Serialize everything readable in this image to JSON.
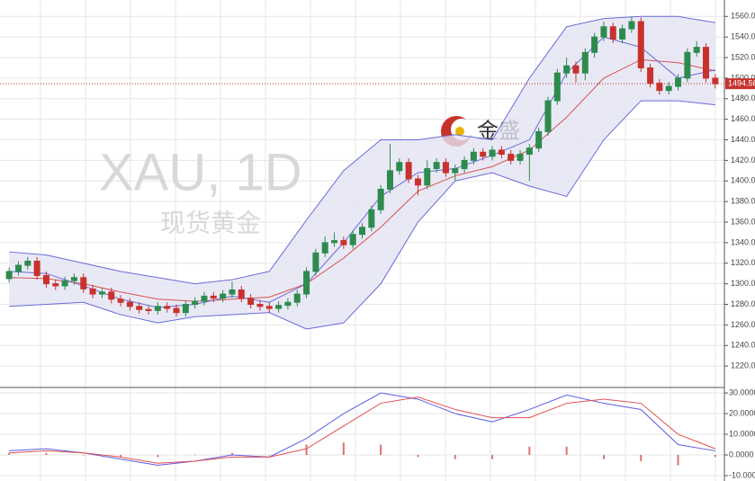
{
  "chart_data": {
    "type": "candlestick",
    "title": "XAU, 1D",
    "subtitle": "现货黄金",
    "brand": "金盛",
    "up_color": "#2e8b4e",
    "down_color": "#c8322d",
    "open": [
      1305,
      1312,
      1318,
      1322,
      1308,
      1300,
      1298,
      1303,
      1306,
      1295,
      1290,
      1292,
      1285,
      1282,
      1278,
      1275,
      1274,
      1278,
      1276,
      1272,
      1280,
      1283,
      1288,
      1286,
      1290,
      1294,
      1286,
      1280,
      1278,
      1276,
      1279,
      1282,
      1290,
      1312,
      1330,
      1340,
      1342,
      1338,
      1348,
      1355,
      1372,
      1392,
      1410,
      1418,
      1402,
      1396,
      1412,
      1418,
      1408,
      1412,
      1420,
      1428,
      1424,
      1430,
      1426,
      1420,
      1426,
      1432,
      1448,
      1478,
      1505,
      1512,
      1505,
      1525,
      1540,
      1550,
      1538,
      1548,
      1555,
      1510,
      1495,
      1488,
      1492,
      1500,
      1525,
      1530,
      1500
    ],
    "high": [
      1316,
      1322,
      1326,
      1326,
      1312,
      1304,
      1307,
      1310,
      1310,
      1299,
      1296,
      1296,
      1289,
      1286,
      1282,
      1279,
      1282,
      1282,
      1280,
      1284,
      1287,
      1292,
      1292,
      1294,
      1302,
      1298,
      1290,
      1284,
      1282,
      1283,
      1286,
      1294,
      1316,
      1334,
      1346,
      1350,
      1346,
      1352,
      1359,
      1376,
      1396,
      1436,
      1422,
      1422,
      1406,
      1420,
      1422,
      1422,
      1416,
      1424,
      1432,
      1432,
      1434,
      1434,
      1430,
      1430,
      1436,
      1452,
      1482,
      1509,
      1520,
      1516,
      1529,
      1544,
      1555,
      1554,
      1552,
      1560,
      1559,
      1514,
      1499,
      1496,
      1504,
      1529,
      1536,
      1534,
      1504
    ],
    "low": [
      1301,
      1308,
      1314,
      1304,
      1296,
      1294,
      1294,
      1299,
      1291,
      1286,
      1286,
      1281,
      1278,
      1274,
      1271,
      1270,
      1270,
      1272,
      1268,
      1268,
      1276,
      1279,
      1282,
      1282,
      1286,
      1282,
      1276,
      1274,
      1272,
      1272,
      1275,
      1278,
      1286,
      1308,
      1326,
      1336,
      1334,
      1334,
      1344,
      1351,
      1368,
      1388,
      1406,
      1398,
      1386,
      1392,
      1408,
      1404,
      1400,
      1408,
      1416,
      1420,
      1420,
      1422,
      1416,
      1416,
      1400,
      1428,
      1444,
      1474,
      1500,
      1496,
      1498,
      1520,
      1536,
      1534,
      1534,
      1544,
      1506,
      1491,
      1484,
      1484,
      1488,
      1496,
      1521,
      1496,
      1490
    ],
    "close": [
      1312,
      1318,
      1322,
      1308,
      1300,
      1298,
      1303,
      1306,
      1295,
      1290,
      1292,
      1285,
      1282,
      1278,
      1275,
      1274,
      1278,
      1276,
      1272,
      1280,
      1283,
      1288,
      1286,
      1290,
      1294,
      1286,
      1280,
      1278,
      1276,
      1279,
      1282,
      1290,
      1312,
      1330,
      1340,
      1342,
      1338,
      1348,
      1355,
      1372,
      1392,
      1410,
      1418,
      1402,
      1396,
      1412,
      1418,
      1408,
      1412,
      1420,
      1428,
      1424,
      1430,
      1426,
      1420,
      1426,
      1432,
      1448,
      1478,
      1505,
      1512,
      1505,
      1525,
      1540,
      1550,
      1538,
      1548,
      1555,
      1510,
      1495,
      1488,
      1492,
      1500,
      1525,
      1530,
      1500,
      1494.56
    ],
    "ylim": [
      1200,
      1576
    ],
    "yticks": [
      {
        "value": 1220,
        "label": "1220.00"
      },
      {
        "value": 1240,
        "label": "1240.00"
      },
      {
        "value": 1260,
        "label": "1260.00"
      },
      {
        "value": 1280,
        "label": "1280.00"
      },
      {
        "value": 1300,
        "label": "1300.00"
      },
      {
        "value": 1320,
        "label": "1320.00"
      },
      {
        "value": 1340,
        "label": "1340.00"
      },
      {
        "value": 1360,
        "label": "1360.00"
      },
      {
        "value": 1380,
        "label": "1380.00"
      },
      {
        "value": 1400,
        "label": "1400.00"
      },
      {
        "value": 1420,
        "label": "1420.00"
      },
      {
        "value": 1440,
        "label": "1440.00"
      },
      {
        "value": 1460,
        "label": "1460.00"
      },
      {
        "value": 1480,
        "label": "1480.00"
      },
      {
        "value": 1500,
        "label": "1500.00"
      },
      {
        "value": 1520,
        "label": "1520.00"
      },
      {
        "value": 1540,
        "label": "1540.00"
      },
      {
        "value": 1560,
        "label": "1560.00"
      }
    ],
    "last_price": {
      "value": 1494.56,
      "label": "1494.56"
    },
    "indicators": {
      "x": [
        1,
        5,
        9,
        13,
        17,
        21,
        25,
        29,
        33,
        37,
        41,
        45,
        49,
        53,
        57,
        61,
        65,
        69,
        73,
        77
      ],
      "upper": [
        1331,
        1328,
        1320,
        1312,
        1306,
        1300,
        1304,
        1312,
        1362,
        1410,
        1440,
        1440,
        1445,
        1440,
        1500,
        1550,
        1558,
        1560,
        1560,
        1554
      ],
      "middle": [
        1306,
        1305,
        1300,
        1292,
        1285,
        1283,
        1285,
        1287,
        1300,
        1325,
        1355,
        1390,
        1405,
        1414,
        1430,
        1462,
        1500,
        1518,
        1515,
        1507
      ],
      "lower": [
        1278,
        1280,
        1282,
        1270,
        1262,
        1268,
        1270,
        1272,
        1256,
        1262,
        1300,
        1360,
        1400,
        1408,
        1395,
        1385,
        1440,
        1478,
        1478,
        1474
      ],
      "fast": [
        1312,
        1310,
        1298,
        1285,
        1277,
        1280,
        1288,
        1282,
        1300,
        1340,
        1385,
        1408,
        1412,
        1425,
        1440,
        1505,
        1540,
        1530,
        1500,
        1508
      ],
      "band_color": "#6a6ad6",
      "band_fill": "#e4e4f4",
      "middle_color": "#d9534f"
    },
    "macd": {
      "ylim": [
        -12.6,
        32.2
      ],
      "yticks": [
        {
          "value": 30,
          "label": "30.0000"
        },
        {
          "value": 20,
          "label": "20.0000"
        },
        {
          "value": 10,
          "label": "10.0000"
        },
        {
          "value": 0,
          "label": "0.0000"
        },
        {
          "value": -10,
          "label": "-10.0000"
        }
      ],
      "x": [
        1,
        5,
        9,
        13,
        17,
        21,
        25,
        29,
        33,
        37,
        41,
        45,
        49,
        53,
        57,
        61,
        65,
        69,
        73,
        77
      ],
      "macd": [
        2,
        3,
        1,
        -2,
        -5,
        -3,
        0,
        -1,
        8,
        20,
        30,
        27,
        20,
        16,
        22,
        29,
        25,
        22,
        5,
        2
      ],
      "signal": [
        1,
        2,
        1,
        -1,
        -4,
        -3,
        -1,
        -1,
        3,
        14,
        25,
        28,
        22,
        18,
        18,
        25,
        27,
        25,
        10,
        3
      ],
      "histogram": [
        1,
        1,
        0,
        -1,
        -1,
        0,
        1,
        0,
        5,
        6,
        5,
        -1,
        -2,
        -2,
        4,
        4,
        -2,
        -3,
        -5,
        -1
      ],
      "macd_color": "#5b5be0",
      "signal_color": "#e05050",
      "hist_color": "#e07070"
    }
  }
}
